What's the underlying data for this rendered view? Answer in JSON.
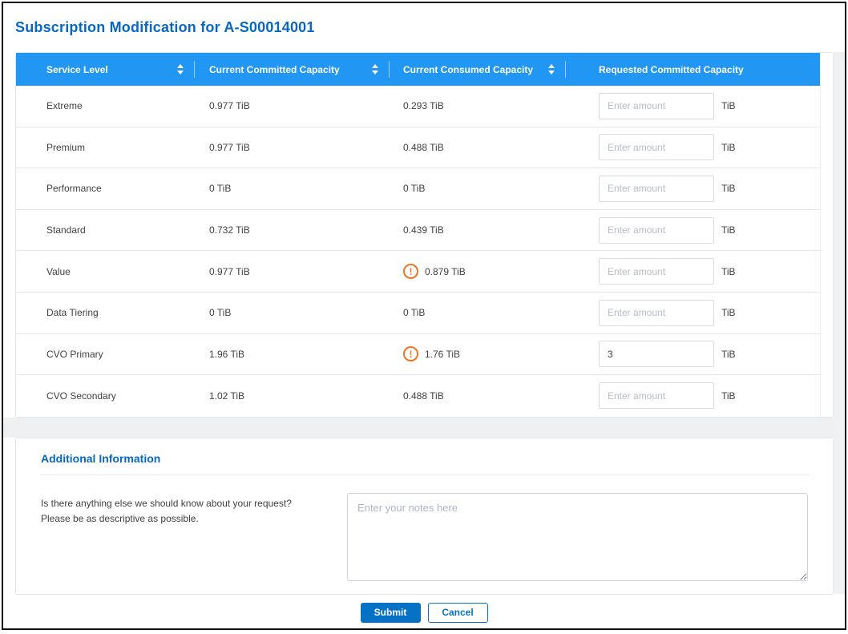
{
  "page": {
    "title": "Subscription Modification for A-S00014001"
  },
  "table": {
    "columns": [
      {
        "label": "Service Level",
        "sortable": true
      },
      {
        "label": "Current Committed Capacity",
        "sortable": true
      },
      {
        "label": "Current Consumed Capacity",
        "sortable": true
      },
      {
        "label": "Requested Committed Capacity",
        "sortable": false
      }
    ],
    "unit": "TiB",
    "input_placeholder": "Enter amount",
    "rows": [
      {
        "service_level": "Extreme",
        "committed": "0.977 TiB",
        "consumed": "0.293 TiB",
        "warning": false,
        "requested": ""
      },
      {
        "service_level": "Premium",
        "committed": "0.977 TiB",
        "consumed": "0.488 TiB",
        "warning": false,
        "requested": ""
      },
      {
        "service_level": "Performance",
        "committed": "0 TiB",
        "consumed": "0 TiB",
        "warning": false,
        "requested": ""
      },
      {
        "service_level": "Standard",
        "committed": "0.732 TiB",
        "consumed": "0.439 TiB",
        "warning": false,
        "requested": ""
      },
      {
        "service_level": "Value",
        "committed": "0.977 TiB",
        "consumed": "0.879 TiB",
        "warning": true,
        "requested": ""
      },
      {
        "service_level": "Data Tiering",
        "committed": "0 TiB",
        "consumed": "0 TiB",
        "warning": false,
        "requested": ""
      },
      {
        "service_level": "CVO Primary",
        "committed": "1.96 TiB",
        "consumed": "1.76 TiB",
        "warning": true,
        "requested": "3"
      },
      {
        "service_level": "CVO Secondary",
        "committed": "1.02 TiB",
        "consumed": "0.488 TiB",
        "warning": false,
        "requested": ""
      }
    ],
    "warning_symbol": "!"
  },
  "additional_info": {
    "title": "Additional Information",
    "question_line1": "Is there anything else we should know about your request?",
    "question_line2": "Please be as descriptive as possible.",
    "notes_placeholder": "Enter your notes here"
  },
  "actions": {
    "submit_label": "Submit",
    "cancel_label": "Cancel"
  },
  "colors": {
    "header_bg": "#2196f3",
    "title_blue": "#0667c5",
    "button_blue": "#0672c6",
    "warning_orange": "#ec7422"
  }
}
